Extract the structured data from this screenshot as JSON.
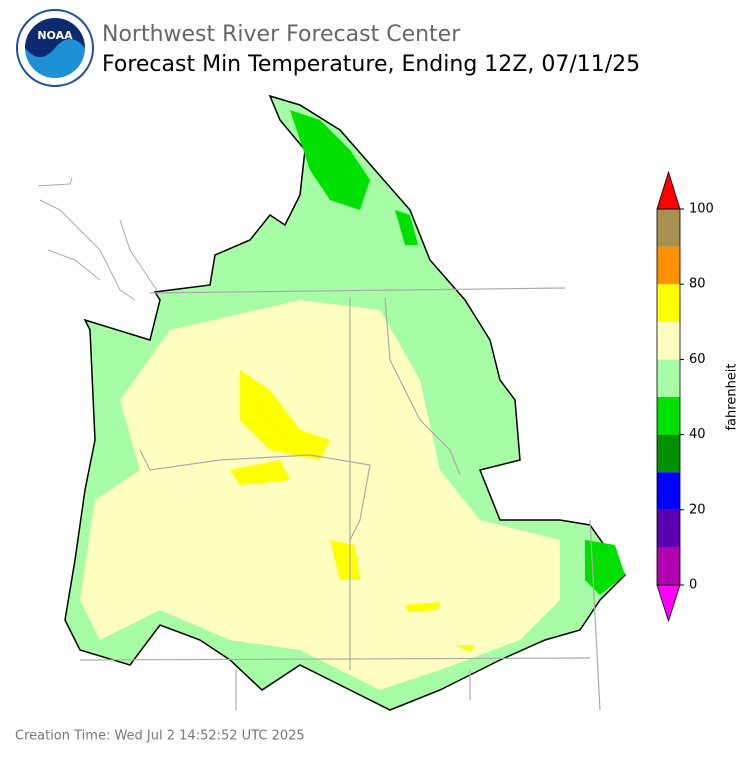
{
  "header": {
    "agency": "Northwest River Forecast Center",
    "title": "Forecast Min Temperature, Ending 12Z, 07/11/25",
    "logo": "NOAA"
  },
  "colorbar": {
    "label": "fahrenheit",
    "range": [
      0,
      100
    ],
    "ticks": [
      0,
      20,
      40,
      60,
      80,
      100
    ],
    "bounds": [
      0,
      10,
      20,
      30,
      40,
      50,
      60,
      70,
      80,
      90,
      100
    ],
    "colors": [
      "#b000b0",
      "#5a00b0",
      "#0000ff",
      "#009000",
      "#00e000",
      "#a6fda6",
      "#ffffc0",
      "#ffff00",
      "#ff9000",
      "#a89050"
    ],
    "under_color": "#ff00ff",
    "over_color": "#ff0000"
  },
  "footer": {
    "creation_time": "Creation Time: Wed Jul 2 14:52:52 UTC 2025"
  }
}
